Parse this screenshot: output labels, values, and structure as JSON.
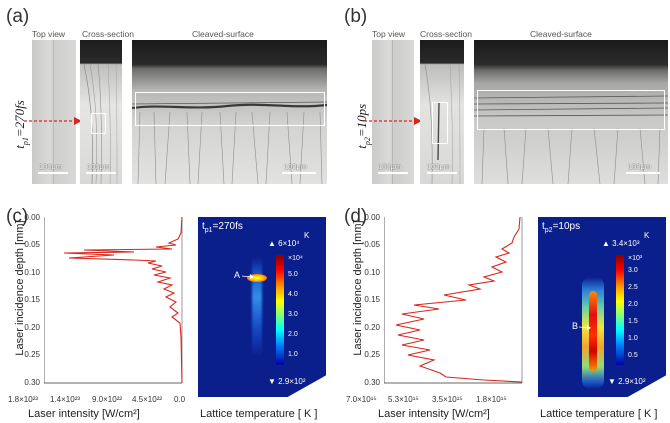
{
  "panel_a": {
    "letter": "(a)",
    "titles": {
      "top_view": "Top view",
      "cross_section": "Cross-section",
      "cleaved_surface": "Cleaved-surface"
    },
    "pulse_label": {
      "t": "t",
      "sub": "p1",
      "value": "=270fs"
    },
    "scale_labels": [
      "100μm",
      "100μm",
      "100μm"
    ]
  },
  "panel_b": {
    "letter": "(b)",
    "titles": {
      "top_view": "Top view",
      "cross_section": "Cross-section",
      "cleaved_surface": "Cleaved-surface"
    },
    "pulse_label": {
      "t": "t",
      "sub": "p2",
      "value": "=10ps"
    },
    "scale_labels": [
      "100μm",
      "100μm",
      "100μm"
    ]
  },
  "panel_c": {
    "letter": "(c)",
    "y_axis_label": "Laser incidence depth [mm]",
    "y_ticks": [
      "0.00",
      "0.05",
      "0.10",
      "0.15",
      "0.20",
      "0.25",
      "0.30"
    ],
    "x_ticks": [
      "1.8×10²³",
      "1.4×10²³",
      "9.0×10²²",
      "4.5×10²²",
      "0.0"
    ],
    "x_axis_label": "Laser intensity  [W/cm²]",
    "map_label": {
      "t": "t",
      "sub": "p1",
      "value": "=270fs"
    },
    "map_point": "A",
    "colorbar": {
      "unit": "K",
      "max": "▲ 6×10⁴",
      "multiplier": "×10⁴",
      "ticks": [
        "5.0",
        "4.0",
        "3.0",
        "2.0",
        "1.0"
      ],
      "min": "▼ 2.9×10²"
    },
    "map_axis_label": "Lattice temperature [ K ]"
  },
  "panel_d": {
    "letter": "(d)",
    "y_axis_label": "Laser incidence depth [mm]",
    "y_ticks": [
      "0.00",
      "0.05",
      "0.10",
      "0.15",
      "0.20",
      "0.25",
      "0.30"
    ],
    "x_ticks": [
      "7.0×10¹⁵",
      "5.3×10¹⁵",
      "3.5×10¹⁵",
      "1.8×10¹⁵"
    ],
    "x_axis_label": "Laser intensity [W/cm²]",
    "map_label": {
      "t": "t",
      "sub": "p2",
      "value": "=10ps"
    },
    "map_point": "B",
    "colorbar": {
      "unit": "K",
      "max": "▲ 3.4×10³",
      "multiplier": "×10³",
      "ticks": [
        "3.0",
        "2.5",
        "2.0",
        "1.5",
        "1.0",
        "0.5"
      ],
      "min": "▼ 2.9×10²"
    },
    "map_axis_label": "Lattice temperature [ K ]"
  },
  "colors": {
    "curve": "#d7261e",
    "map_bg": "#0a1f8c",
    "arrow": "#e03a2a"
  }
}
